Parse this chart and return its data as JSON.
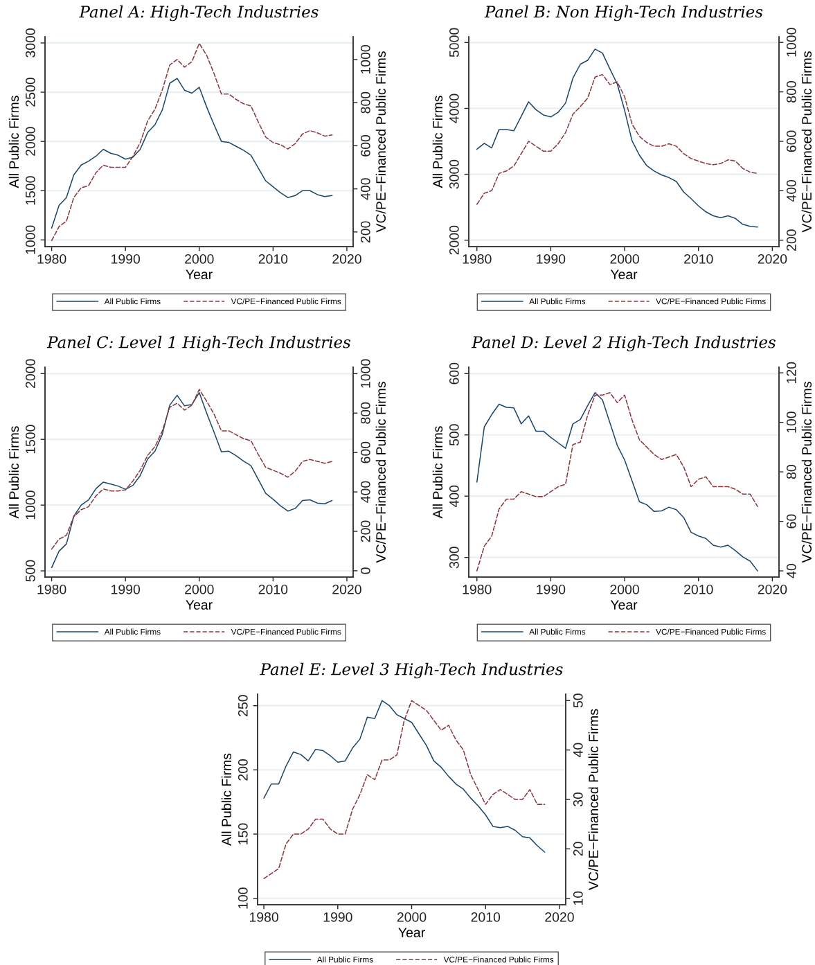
{
  "chart_data": [
    {
      "type": "line",
      "title": "Panel A: High-Tech Industries",
      "xlabel": "Year",
      "ylabel": "All Public Firms",
      "y2label": "VC/PE−Financed Public Firms",
      "grid": "y",
      "legend": "bottom",
      "x": [
        1980,
        1981,
        1982,
        1983,
        1984,
        1985,
        1986,
        1987,
        1988,
        1989,
        1990,
        1991,
        1992,
        1993,
        1994,
        1995,
        1996,
        1997,
        1998,
        1999,
        2000,
        2001,
        2002,
        2003,
        2004,
        2005,
        2006,
        2007,
        2008,
        2009,
        2010,
        2011,
        2012,
        2013,
        2014,
        2015,
        2016,
        2017,
        2018
      ],
      "xlim": [
        1979.1,
        2020.85
      ],
      "xticks": [
        1980,
        1990,
        2000,
        2010,
        2020
      ],
      "ylim": [
        932,
        3063
      ],
      "yticks": [
        1000,
        1500,
        2000,
        2500,
        3000
      ],
      "y2lim": [
        132,
        1106
      ],
      "y2ticks": [
        200,
        400,
        600,
        800,
        1000
      ],
      "series": [
        {
          "name": "All Public Firms",
          "color": "#1a476f",
          "line_style": "solid",
          "values": [
            1120,
            1350,
            1430,
            1660,
            1760,
            1800,
            1850,
            1920,
            1880,
            1860,
            1820,
            1840,
            1920,
            2090,
            2170,
            2320,
            2590,
            2640,
            2520,
            2490,
            2550,
            2350,
            2170,
            2000,
            1990,
            1950,
            1910,
            1860,
            1730,
            1600,
            1540,
            1480,
            1430,
            1450,
            1500,
            1500,
            1460,
            1440,
            1450
          ]
        },
        {
          "name": "VC/PE−Financed Public Firms",
          "color": "#90353b",
          "line_style": "dashed",
          "axis": "y2",
          "values": [
            160,
            225,
            250,
            360,
            405,
            415,
            475,
            510,
            500,
            500,
            500,
            550,
            615,
            715,
            770,
            860,
            975,
            1000,
            965,
            990,
            1075,
            1020,
            935,
            840,
            840,
            815,
            795,
            785,
            710,
            640,
            615,
            605,
            585,
            610,
            655,
            670,
            660,
            645,
            650
          ]
        }
      ]
    },
    {
      "type": "line",
      "title": "Panel B: Non High-Tech Industries",
      "xlabel": "Year",
      "ylabel": "All Public Firms",
      "y2label": "VC/PE−Financed Public Firms",
      "grid": "y",
      "legend": "bottom",
      "x": [
        1980,
        1981,
        1982,
        1983,
        1984,
        1985,
        1986,
        1987,
        1988,
        1989,
        1990,
        1991,
        1992,
        1993,
        1994,
        1995,
        1996,
        1997,
        1998,
        1999,
        2000,
        2001,
        2002,
        2003,
        2004,
        2005,
        2006,
        2007,
        2008,
        2009,
        2010,
        2011,
        2012,
        2013,
        2014,
        2015,
        2016,
        2017,
        2018
      ],
      "xlim": [
        1978.9,
        2020.9
      ],
      "xticks": [
        1980,
        1990,
        2000,
        2010,
        2020
      ],
      "ylim": [
        1902,
        5088
      ],
      "yticks": [
        2000,
        3000,
        4000,
        5000
      ],
      "y2lim": [
        174,
        1023
      ],
      "y2ticks": [
        200,
        400,
        600,
        800,
        1000
      ],
      "series": [
        {
          "name": "All Public Firms",
          "color": "#1a476f",
          "line_style": "solid",
          "values": [
            3380,
            3470,
            3400,
            3680,
            3680,
            3660,
            3880,
            4100,
            3980,
            3900,
            3870,
            3940,
            4080,
            4460,
            4670,
            4730,
            4900,
            4840,
            4600,
            4370,
            3970,
            3510,
            3290,
            3130,
            3050,
            2990,
            2950,
            2890,
            2730,
            2630,
            2520,
            2430,
            2370,
            2340,
            2370,
            2330,
            2240,
            2210,
            2200
          ]
        },
        {
          "name": "VC/PE−Financed Public Firms",
          "color": "#90353b",
          "line_style": "dashed",
          "axis": "y2",
          "values": [
            345,
            390,
            400,
            470,
            480,
            500,
            550,
            600,
            580,
            560,
            560,
            590,
            635,
            710,
            740,
            775,
            860,
            870,
            830,
            840,
            780,
            670,
            620,
            595,
            580,
            580,
            590,
            580,
            550,
            530,
            520,
            510,
            505,
            510,
            525,
            520,
            490,
            475,
            470
          ]
        }
      ]
    },
    {
      "type": "line",
      "title": "Panel C: Level 1 High-Tech Industries",
      "xlabel": "Year",
      "ylabel": "All Public Firms",
      "y2label": "VC/PE−Financed Public Firms",
      "grid": "y",
      "legend": "bottom",
      "x": [
        1980,
        1981,
        1982,
        1983,
        1984,
        1985,
        1986,
        1987,
        1988,
        1989,
        1990,
        1991,
        1992,
        1993,
        1994,
        1995,
        1996,
        1997,
        1998,
        1999,
        2000,
        2001,
        2002,
        2003,
        2004,
        2005,
        2006,
        2007,
        2008,
        2009,
        2010,
        2011,
        2012,
        2013,
        2014,
        2015,
        2016,
        2017,
        2018
      ],
      "xlim": [
        1979.1,
        2020.85
      ],
      "xticks": [
        1980,
        1990,
        2000,
        2010,
        2020
      ],
      "ylim": [
        453,
        2049
      ],
      "yticks": [
        500,
        1000,
        1500,
        2000
      ],
      "y2lim": [
        -32,
        1033
      ],
      "y2ticks": [
        0,
        200,
        400,
        600,
        800,
        1000
      ],
      "series": [
        {
          "name": "All Public Firms",
          "color": "#1a476f",
          "line_style": "solid",
          "values": [
            525,
            650,
            705,
            915,
            1000,
            1040,
            1125,
            1175,
            1160,
            1145,
            1120,
            1150,
            1225,
            1350,
            1410,
            1540,
            1760,
            1835,
            1755,
            1765,
            1855,
            1700,
            1555,
            1405,
            1410,
            1375,
            1335,
            1300,
            1195,
            1090,
            1045,
            995,
            955,
            975,
            1035,
            1040,
            1015,
            1010,
            1035
          ]
        },
        {
          "name": "VC/PE−Financed Public Firms",
          "color": "#90353b",
          "line_style": "dashed",
          "axis": "y2",
          "values": [
            110,
            160,
            180,
            275,
            310,
            325,
            380,
            415,
            405,
            405,
            410,
            455,
            510,
            585,
            630,
            710,
            830,
            850,
            815,
            840,
            920,
            860,
            795,
            710,
            710,
            690,
            670,
            660,
            590,
            525,
            510,
            495,
            475,
            505,
            555,
            565,
            555,
            545,
            555
          ]
        }
      ]
    },
    {
      "type": "line",
      "title": "Panel D: Level 2 High-Tech Industries",
      "xlabel": "Year",
      "ylabel": "All Public Firms",
      "y2label": "VC/PE−Financed Public Firms",
      "grid": "y",
      "legend": "bottom",
      "x": [
        1980,
        1981,
        1982,
        1983,
        1984,
        1985,
        1986,
        1987,
        1988,
        1989,
        1990,
        1991,
        1992,
        1993,
        1994,
        1995,
        1996,
        1997,
        1998,
        1999,
        2000,
        2001,
        2002,
        2003,
        2004,
        2005,
        2006,
        2007,
        2008,
        2009,
        2010,
        2011,
        2012,
        2013,
        2014,
        2015,
        2016,
        2017,
        2018
      ],
      "xlim": [
        1978.9,
        2020.9
      ],
      "xticks": [
        1980,
        1990,
        2000,
        2010,
        2020
      ],
      "ylim": [
        268,
        610.5
      ],
      "yticks": [
        300,
        400,
        500,
        600
      ],
      "y2lim": [
        37.5,
        122.3
      ],
      "y2ticks": [
        40,
        60,
        80,
        100,
        120
      ],
      "series": [
        {
          "name": "All Public Firms",
          "color": "#1a476f",
          "line_style": "solid",
          "values": [
            423,
            513,
            533,
            550,
            545,
            544,
            518,
            531,
            506,
            506,
            496,
            487,
            478,
            518,
            525,
            548,
            569,
            557,
            520,
            483,
            459,
            425,
            391,
            386,
            375,
            376,
            382,
            378,
            365,
            341,
            335,
            331,
            320,
            317,
            320,
            311,
            301,
            294,
            278
          ]
        },
        {
          "name": "VC/PE−Financed Public Firms",
          "color": "#90353b",
          "line_style": "dashed",
          "axis": "y2",
          "values": [
            40,
            50,
            54,
            65,
            69,
            69,
            72,
            71,
            70,
            70,
            72,
            74,
            75,
            91,
            92,
            103,
            111,
            111,
            112,
            108,
            111,
            101,
            93,
            90,
            87,
            85,
            86,
            87,
            82,
            74,
            77,
            78,
            74,
            74,
            74,
            73,
            71,
            71,
            66
          ]
        }
      ]
    },
    {
      "type": "line",
      "title": "Panel E: Level 3 High-Tech Industries",
      "xlabel": "Year",
      "ylabel": "All Public Firms",
      "y2label": "VC/PE−Financed Public Firms",
      "grid": "y",
      "legend": "bottom",
      "x": [
        1980,
        1981,
        1982,
        1983,
        1984,
        1985,
        1986,
        1987,
        1988,
        1989,
        1990,
        1991,
        1992,
        1993,
        1994,
        1995,
        1996,
        1997,
        1998,
        1999,
        2000,
        2001,
        2002,
        2003,
        2004,
        2005,
        2006,
        2007,
        2008,
        2009,
        2010,
        2011,
        2012,
        2013,
        2014,
        2015,
        2016,
        2017,
        2018
      ],
      "xlim": [
        1979.15,
        2020.85
      ],
      "xticks": [
        1980,
        1990,
        2000,
        2010,
        2020
      ],
      "ylim": [
        95,
        259
      ],
      "yticks": [
        100,
        150,
        200,
        250
      ],
      "y2lim": [
        8.7,
        51.3
      ],
      "y2ticks": [
        10,
        20,
        30,
        40,
        50
      ],
      "series": [
        {
          "name": "All Public Firms",
          "color": "#1a476f",
          "line_style": "solid",
          "values": [
            178,
            189,
            189,
            203,
            214,
            212,
            207,
            216,
            215,
            211,
            206,
            207,
            217,
            224,
            241,
            240,
            254,
            250,
            243,
            240,
            237,
            228,
            219,
            207,
            202,
            195,
            189,
            185,
            178,
            172,
            165,
            156,
            155,
            156,
            153,
            148,
            147,
            141,
            136
          ]
        },
        {
          "name": "VC/PE−Financed Public Firms",
          "color": "#90353b",
          "line_style": "dashed",
          "axis": "y2",
          "values": [
            14,
            15,
            16,
            21,
            23,
            23,
            24,
            26,
            26,
            24,
            23,
            23,
            28,
            31,
            35,
            34,
            38,
            38,
            39,
            46,
            50,
            49,
            48,
            46,
            44,
            45,
            42,
            40,
            35,
            32,
            29,
            31,
            32,
            31,
            30,
            30,
            32,
            29,
            29
          ]
        }
      ]
    }
  ]
}
